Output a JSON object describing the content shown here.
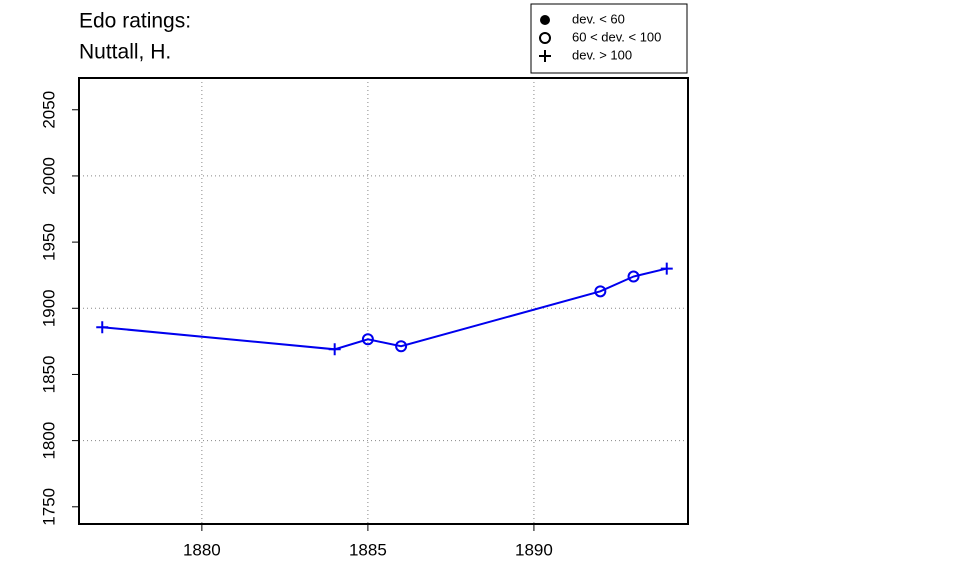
{
  "chart_data": {
    "type": "line",
    "title": "Edo ratings:",
    "subtitle": "Nuttall, H.",
    "x": [
      1877,
      1884,
      1885,
      1886,
      1892,
      1893,
      1894
    ],
    "series": [
      {
        "color": "#0000ee",
        "values": [
          1885.7,
          1869,
          1876.6,
          1871.3,
          1912.8,
          1924,
          1930
        ],
        "markers": [
          "plus",
          "plus",
          "circle",
          "circle",
          "circle",
          "circle",
          "plus"
        ]
      }
    ],
    "xlim": [
      1876.3,
      1894.64
    ],
    "ylim": [
      1737,
      2074
    ],
    "xticks": [
      1880,
      1885,
      1890
    ],
    "yticks": [
      1750,
      1800,
      1850,
      1900,
      1950,
      2000,
      2050
    ],
    "xgrid": [
      1880,
      1885,
      1890
    ],
    "ygrid": [
      1800,
      1900,
      2000
    ],
    "grid": true,
    "legend": {
      "position": "top",
      "entries": [
        {
          "label": "dev. < 60",
          "marker": "dot"
        },
        {
          "label": "60 < dev. < 100",
          "marker": "circle"
        },
        {
          "label": "dev. > 100",
          "marker": "plus"
        }
      ]
    }
  }
}
